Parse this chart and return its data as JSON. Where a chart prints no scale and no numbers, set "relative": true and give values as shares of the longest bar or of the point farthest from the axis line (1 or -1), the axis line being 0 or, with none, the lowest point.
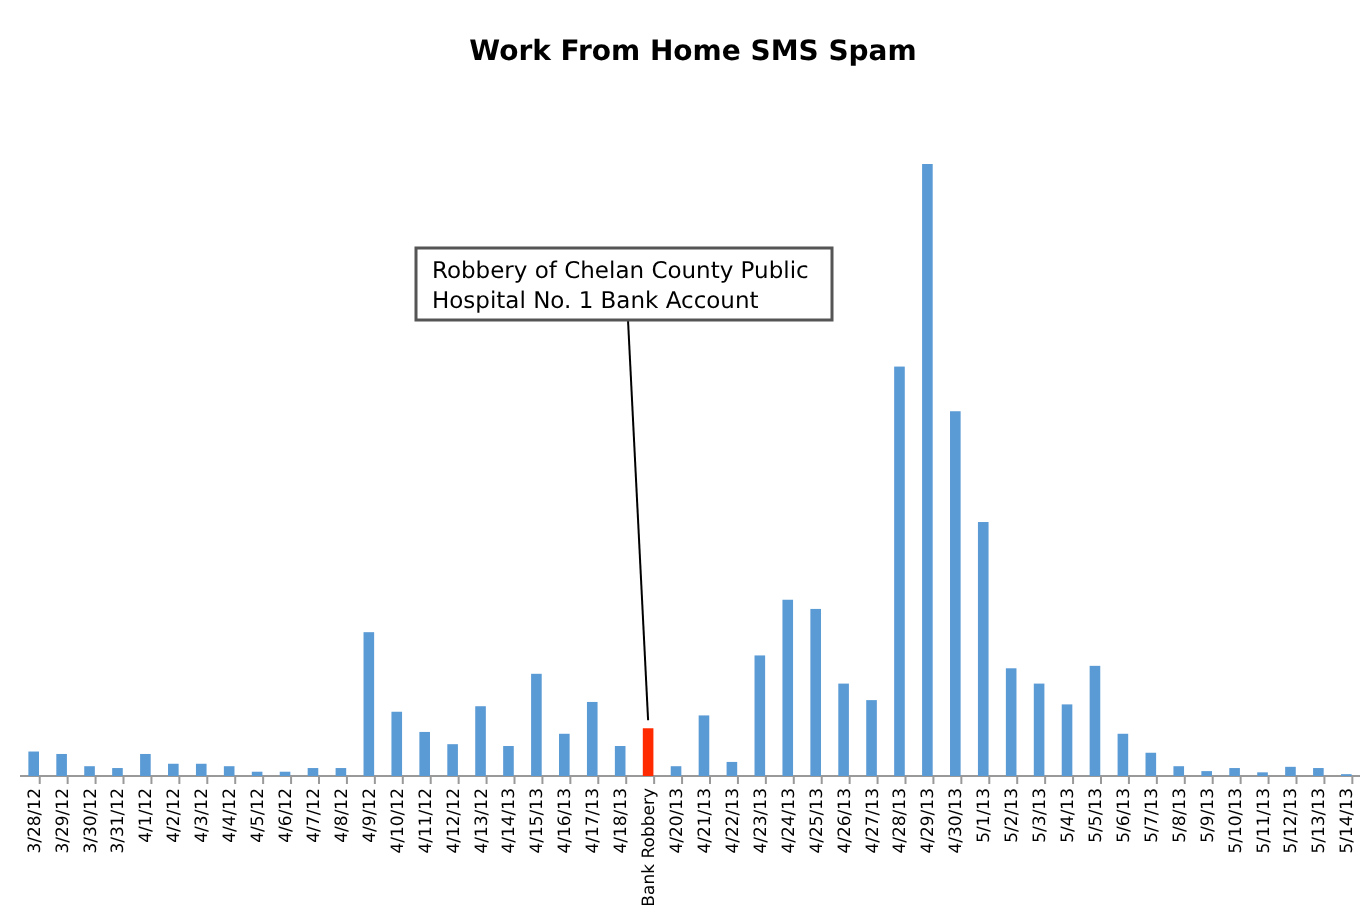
{
  "chart_data": {
    "type": "bar",
    "title": "Work From Home SMS Spam",
    "relative": true,
    "categories": [
      "3/28/12",
      "3/29/12",
      "3/30/12",
      "3/31/12",
      "4/1/12",
      "4/2/12",
      "4/3/12",
      "4/4/12",
      "4/5/12",
      "4/6/12",
      "4/7/12",
      "4/8/12",
      "4/9/12",
      "4/10/12",
      "4/11/12",
      "4/12/12",
      "4/13/12",
      "4/14/13",
      "4/15/13",
      "4/16/13",
      "4/17/13",
      "4/18/13",
      "Bank Robbery",
      "4/20/13",
      "4/21/13",
      "4/22/13",
      "4/23/13",
      "4/24/13",
      "4/25/13",
      "4/26/13",
      "4/27/13",
      "4/28/13",
      "4/29/13",
      "4/30/13",
      "5/1/13",
      "5/2/13",
      "5/3/13",
      "5/4/13",
      "5/5/13",
      "5/6/13",
      "5/7/13",
      "5/8/13",
      "5/9/13",
      "5/10/13",
      "5/11/13",
      "5/12/13",
      "5/13/13",
      "5/14/13"
    ],
    "values": [
      0.04,
      0.036,
      0.016,
      0.013,
      0.036,
      0.02,
      0.02,
      0.016,
      0.007,
      0.007,
      0.013,
      0.013,
      0.235,
      0.105,
      0.072,
      0.052,
      0.114,
      0.049,
      0.167,
      0.069,
      0.121,
      0.049,
      0.078,
      0.016,
      0.099,
      0.023,
      0.197,
      0.288,
      0.273,
      0.151,
      0.124,
      0.669,
      1,
      0.596,
      0.415,
      0.176,
      0.151,
      0.117,
      0.18,
      0.069,
      0.038,
      0.016,
      0.008,
      0.013,
      0.006,
      0.015,
      0.013,
      0.003
    ],
    "colors": [
      "#5b9bd5",
      "#5b9bd5",
      "#5b9bd5",
      "#5b9bd5",
      "#5b9bd5",
      "#5b9bd5",
      "#5b9bd5",
      "#5b9bd5",
      "#5b9bd5",
      "#5b9bd5",
      "#5b9bd5",
      "#5b9bd5",
      "#5b9bd5",
      "#5b9bd5",
      "#5b9bd5",
      "#5b9bd5",
      "#5b9bd5",
      "#5b9bd5",
      "#5b9bd5",
      "#5b9bd5",
      "#5b9bd5",
      "#5b9bd5",
      "#ff2a00",
      "#5b9bd5",
      "#5b9bd5",
      "#5b9bd5",
      "#5b9bd5",
      "#5b9bd5",
      "#5b9bd5",
      "#5b9bd5",
      "#5b9bd5",
      "#5b9bd5",
      "#5b9bd5",
      "#5b9bd5",
      "#5b9bd5",
      "#5b9bd5",
      "#5b9bd5",
      "#5b9bd5",
      "#5b9bd5",
      "#5b9bd5",
      "#5b9bd5",
      "#5b9bd5",
      "#5b9bd5",
      "#5b9bd5",
      "#5b9bd5",
      "#5b9bd5",
      "#5b9bd5",
      "#5b9bd5"
    ],
    "annotations": [
      {
        "text": "Robbery of Chelan County Public\nHospital No. 1 Bank Account",
        "x": "Bank Robbery",
        "y": 0.078
      }
    ]
  }
}
